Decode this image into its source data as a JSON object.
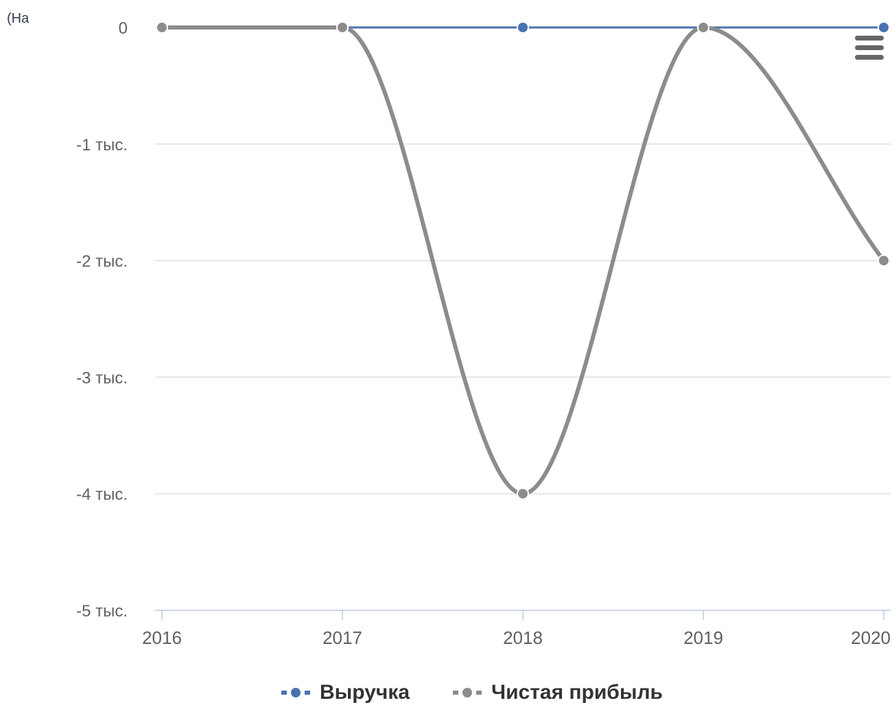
{
  "page": {
    "corner_text": "(На"
  },
  "menu": {
    "icon": "hamburger-menu-icon"
  },
  "chart_data": {
    "type": "line",
    "categories": [
      "2016",
      "2017",
      "2018",
      "2019",
      "2020"
    ],
    "y_ticks": [
      {
        "value": 0,
        "label": "0"
      },
      {
        "value": -1000,
        "label": "-1 тыс."
      },
      {
        "value": -2000,
        "label": "-2 тыс."
      },
      {
        "value": -3000,
        "label": "-3 тыс."
      },
      {
        "value": -4000,
        "label": "-4 тыс."
      },
      {
        "value": -5000,
        "label": "-5 тыс."
      }
    ],
    "ylim": [
      -5000,
      0
    ],
    "grid": true,
    "legend_position": "bottom-center",
    "series": [
      {
        "name": "Выручка",
        "color": "#4a72b0",
        "values": [
          null,
          0,
          0,
          0,
          0
        ]
      },
      {
        "name": "Чистая прибыль",
        "color": "#8c8c8c",
        "values": [
          0,
          0,
          -4000,
          0,
          -2000
        ]
      }
    ]
  }
}
